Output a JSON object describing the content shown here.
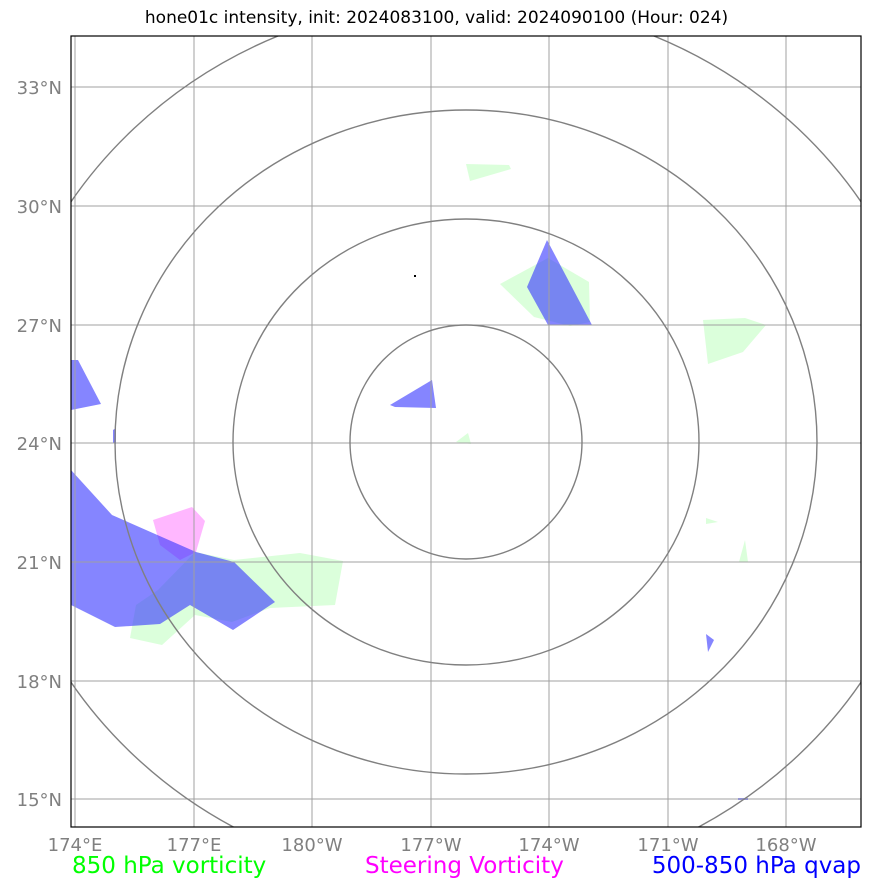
{
  "title": "hone01c intensity, init: 2024083100, valid: 2024090100 (Hour: 024)",
  "lat_labels": [
    "33°N",
    "30°N",
    "27°N",
    "24°N",
    "21°N",
    "18°N",
    "15°N"
  ],
  "lon_labels": [
    "174°E",
    "177°E",
    "180°W",
    "177°W",
    "174°W",
    "171°W",
    "168°W"
  ],
  "legend": [
    {
      "label": "850 hPa vorticity",
      "color": "#00ff00"
    },
    {
      "label": "Steering Vorticity",
      "color": "#ff00ff"
    },
    {
      "label": "500-850 hPa qvap",
      "color": "#0000ff"
    }
  ],
  "colors": {
    "vorticity_fill": "#ccffcc",
    "steering_fill": "#ff99ff",
    "qvap_fill": "#3333ff",
    "grid": "#a0a0a0",
    "range_rings": "#808080"
  }
}
